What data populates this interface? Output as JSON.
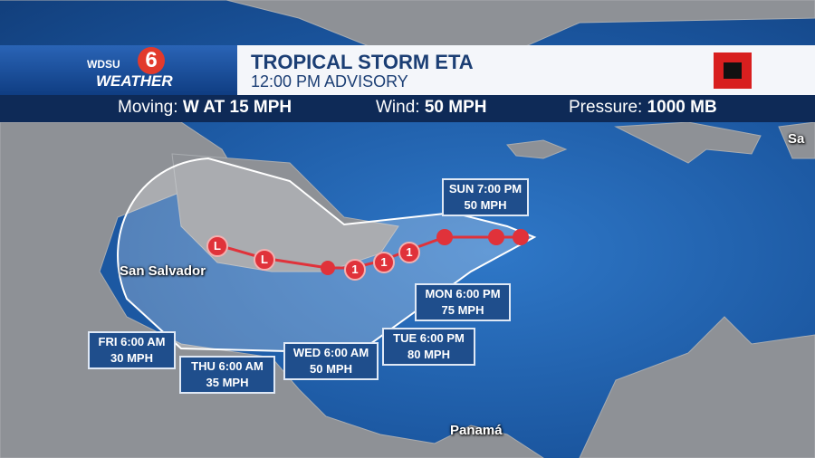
{
  "header": {
    "logo": {
      "station": "WDSU",
      "channel": "6",
      "brand": "WEATHER"
    },
    "title": "TROPICAL STORM ETA",
    "subtitle": "12:00 PM ADVISORY"
  },
  "stats": [
    {
      "label": "Moving:",
      "value": "W AT 15 MPH"
    },
    {
      "label": "Wind:",
      "value": "50 MPH"
    },
    {
      "label": "Pressure:",
      "value": "1000 MB"
    }
  ],
  "places": [
    "San Salvador",
    "Panamá",
    "Sa"
  ],
  "forecast": [
    {
      "time": "SUN 7:00 PM",
      "wind": "50 MPH"
    },
    {
      "time": "MON 6:00 PM",
      "wind": "75 MPH"
    },
    {
      "time": "TUE 6:00 PM",
      "wind": "80 MPH"
    },
    {
      "time": "WED 6:00 AM",
      "wind": "50 MPH"
    },
    {
      "time": "THU 6:00 AM",
      "wind": "35 MPH"
    },
    {
      "time": "FRI 6:00 AM",
      "wind": "30 MPH"
    }
  ],
  "track": [
    "L",
    "L",
    "1",
    "1",
    "1"
  ]
}
